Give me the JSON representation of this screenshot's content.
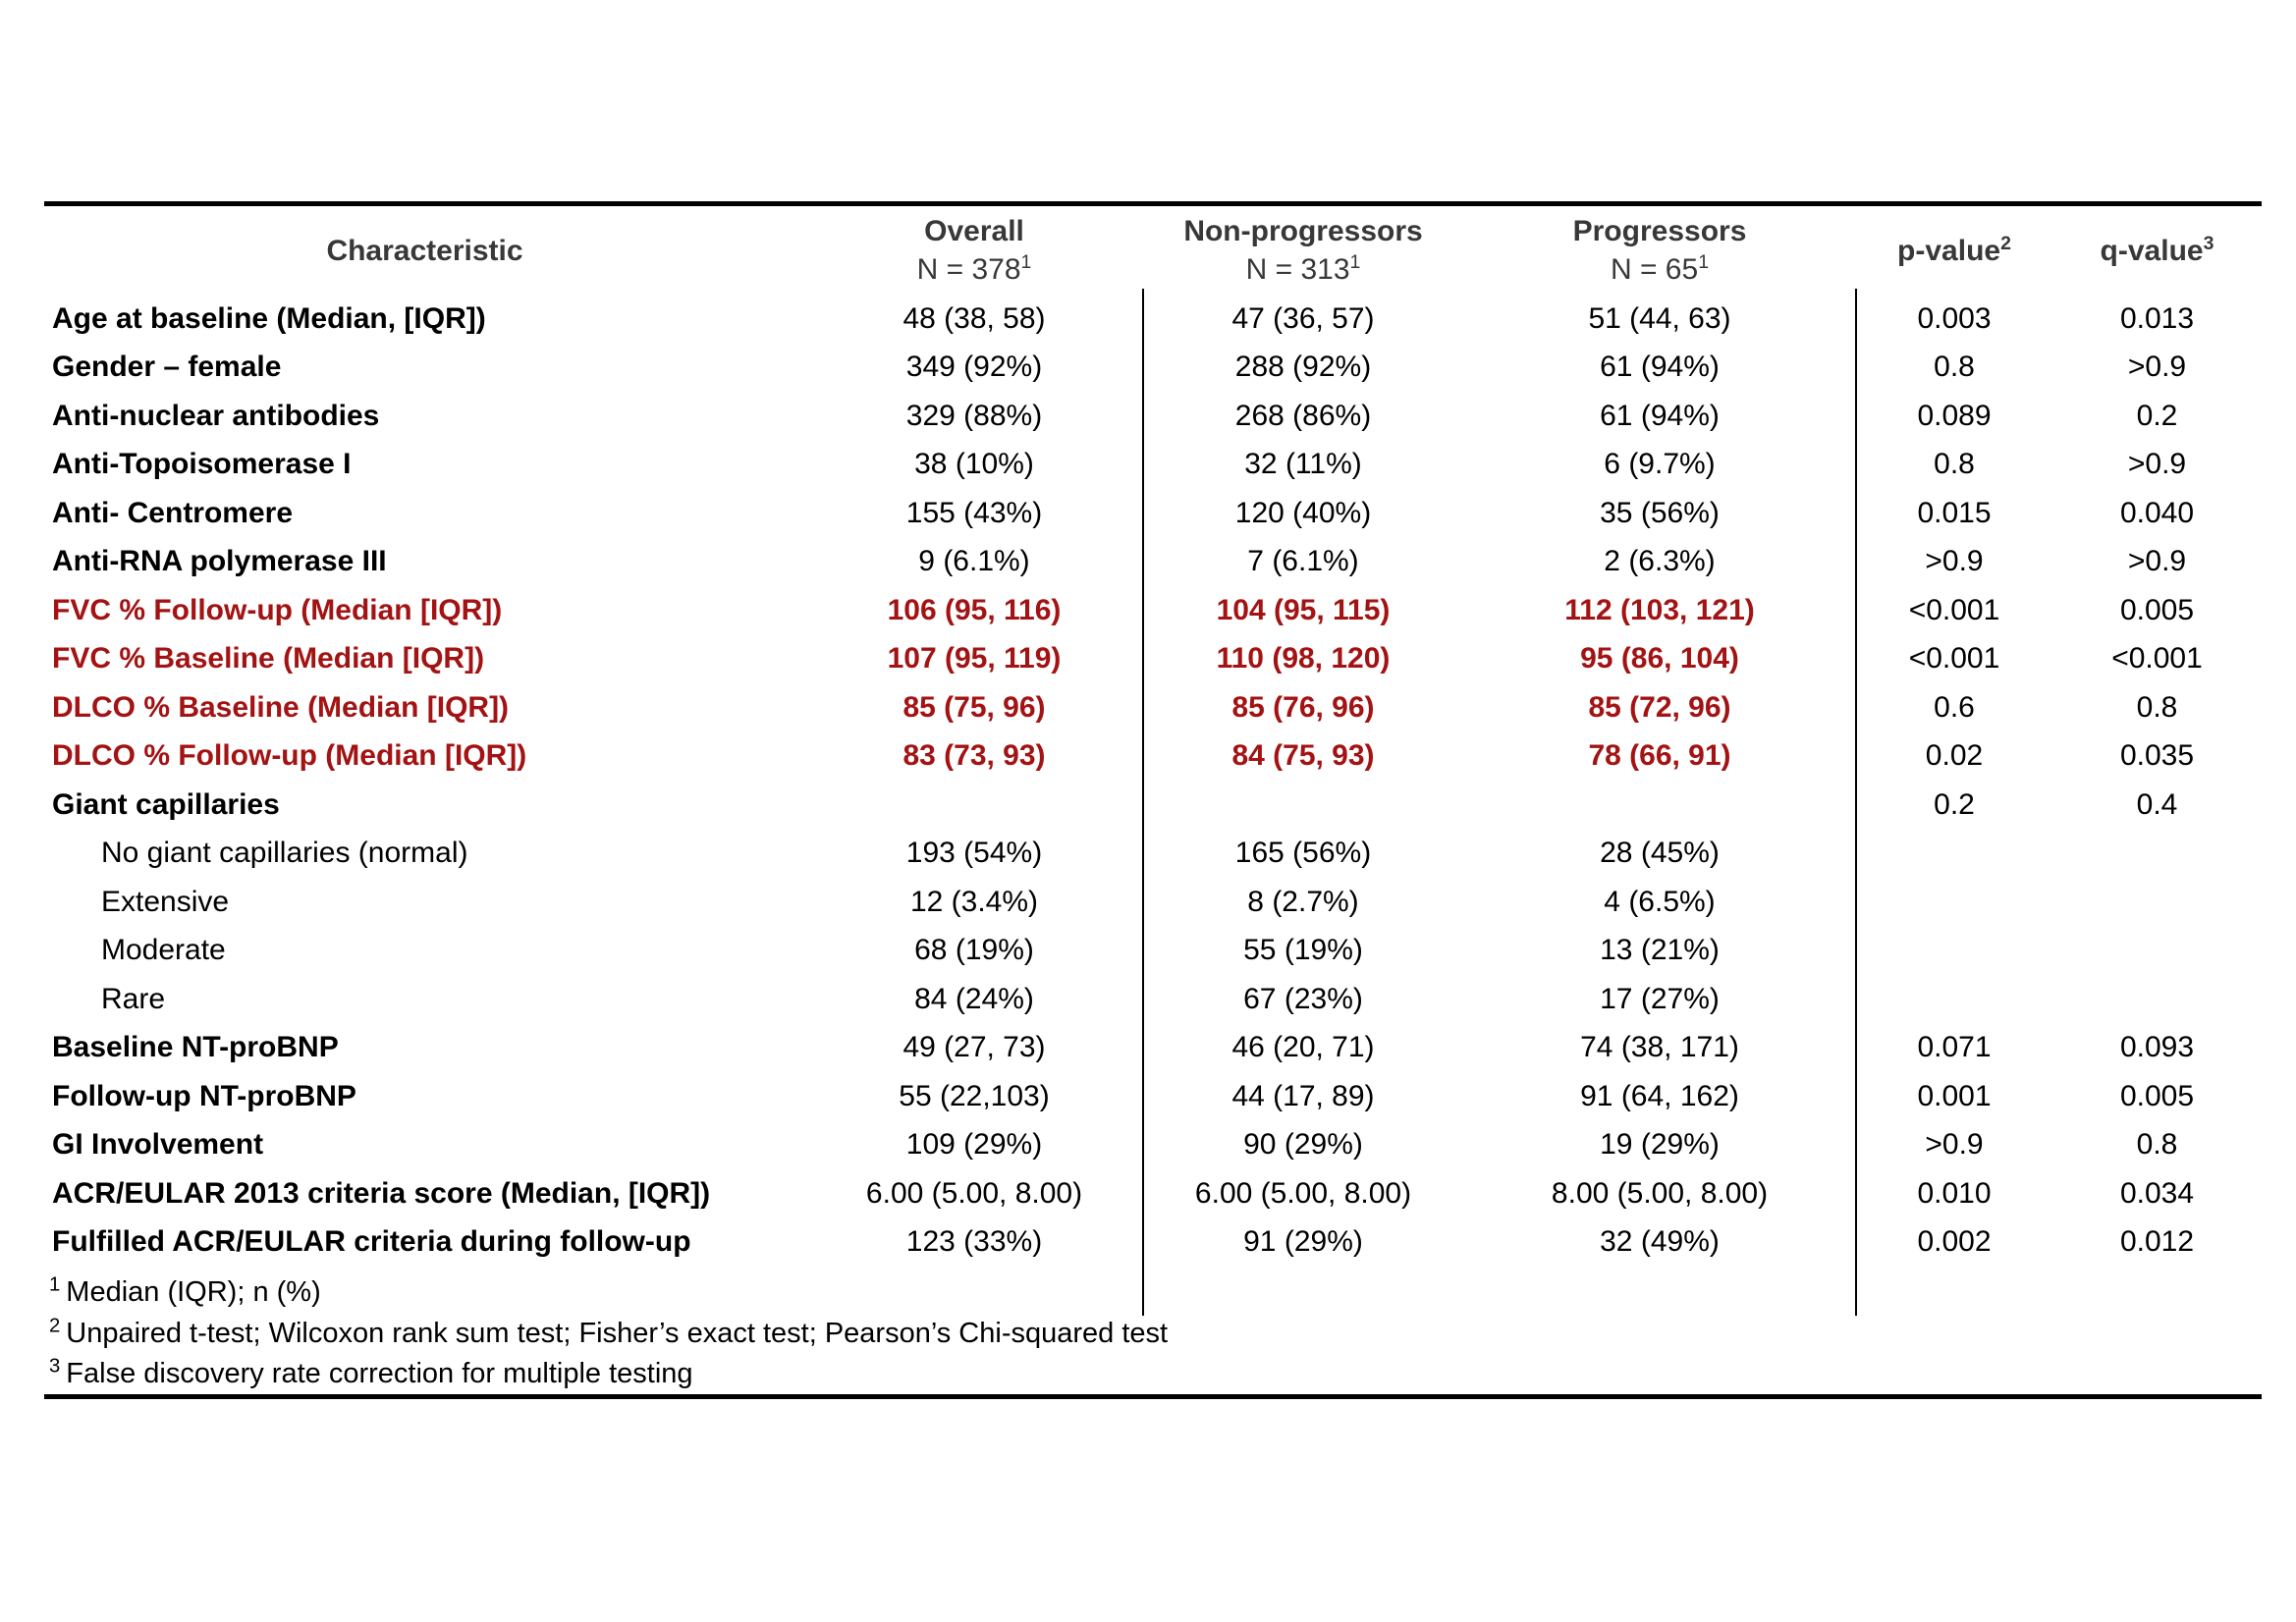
{
  "colors": {
    "accent_red": "#A31313",
    "header_text": "#383838",
    "rule_black": "#000000"
  },
  "table": {
    "header": {
      "characteristic_label": "Characteristic",
      "columns": [
        {
          "name": "Overall",
          "n": "N = 378",
          "sup": "1"
        },
        {
          "name": "Non-progressors",
          "n": "N = 313",
          "sup": "1"
        },
        {
          "name": "Progressors",
          "n": "N = 65",
          "sup": "1"
        }
      ],
      "p_label": {
        "text": "p-value",
        "sup": "2"
      },
      "q_label": {
        "text": "q-value",
        "sup": "3"
      }
    },
    "rows": [
      {
        "style": "default",
        "label": "Age at baseline (Median, [IQR])",
        "overall": "48 (38, 58)",
        "non_progressors": "47 (36, 57)",
        "progressors": "51 (44, 63)",
        "p": "0.003",
        "q": "0.013"
      },
      {
        "style": "default",
        "label": "Gender – female",
        "overall": "349 (92%)",
        "non_progressors": "288 (92%)",
        "progressors": "61 (94%)",
        "p": "0.8",
        "q": ">0.9"
      },
      {
        "style": "default",
        "label": "Anti-nuclear antibodies",
        "overall": "329 (88%)",
        "non_progressors": "268 (86%)",
        "progressors": "61 (94%)",
        "p": "0.089",
        "q": "0.2"
      },
      {
        "style": "default",
        "label": "Anti-Topoisomerase I",
        "overall": "38 (10%)",
        "non_progressors": "32 (11%)",
        "progressors": "6 (9.7%)",
        "p": "0.8",
        "q": ">0.9"
      },
      {
        "style": "default",
        "label": "Anti- Centromere",
        "overall": "155 (43%)",
        "non_progressors": "120 (40%)",
        "progressors": "35 (56%)",
        "p": "0.015",
        "q": "0.040"
      },
      {
        "style": "default",
        "label": "Anti-RNA polymerase III",
        "overall": "9 (6.1%)",
        "non_progressors": "7 (6.1%)",
        "progressors": "2 (6.3%)",
        "p": ">0.9",
        "q": ">0.9"
      },
      {
        "style": "red",
        "label": "FVC % Follow-up (Median [IQR])",
        "overall": "106 (95, 116)",
        "non_progressors": "104 (95, 115)",
        "progressors": "112 (103, 121)",
        "p": "<0.001",
        "q": "0.005"
      },
      {
        "style": "red",
        "label": "FVC % Baseline (Median [IQR])",
        "overall": "107 (95, 119)",
        "non_progressors": "110 (98, 120)",
        "progressors": "95 (86, 104)",
        "p": "<0.001",
        "q": "<0.001"
      },
      {
        "style": "red",
        "label": "DLCO % Baseline (Median [IQR])",
        "overall": "85 (75, 96)",
        "non_progressors": "85 (76, 96)",
        "progressors": "85 (72, 96)",
        "p": "0.6",
        "q": "0.8"
      },
      {
        "style": "red",
        "label": "DLCO % Follow-up (Median [IQR])",
        "overall": "83 (73, 93)",
        "non_progressors": "84 (75, 93)",
        "progressors": "78 (66, 91)",
        "p": "0.02",
        "q": "0.035"
      },
      {
        "style": "default",
        "label": "Giant capillaries",
        "overall": "",
        "non_progressors": "",
        "progressors": "",
        "p": "0.2",
        "q": "0.4"
      },
      {
        "style": "sub",
        "label": "No giant capillaries (normal)",
        "overall": "193 (54%)",
        "non_progressors": "165 (56%)",
        "progressors": "28 (45%)",
        "p": "",
        "q": ""
      },
      {
        "style": "sub",
        "label": "Extensive",
        "overall": "12 (3.4%)",
        "non_progressors": "8 (2.7%)",
        "progressors": "4 (6.5%)",
        "p": "",
        "q": ""
      },
      {
        "style": "sub",
        "label": "Moderate",
        "overall": "68 (19%)",
        "non_progressors": "55 (19%)",
        "progressors": "13 (21%)",
        "p": "",
        "q": ""
      },
      {
        "style": "sub",
        "label": "Rare",
        "overall": "84 (24%)",
        "non_progressors": "67 (23%)",
        "progressors": "17 (27%)",
        "p": "",
        "q": ""
      },
      {
        "style": "default",
        "label": "Baseline NT-proBNP",
        "overall": "49 (27, 73)",
        "non_progressors": "46 (20, 71)",
        "progressors": "74 (38, 171)",
        "p": "0.071",
        "q": "0.093"
      },
      {
        "style": "default",
        "label": "Follow-up NT-proBNP",
        "overall": "55 (22,103)",
        "non_progressors": "44 (17, 89)",
        "progressors": "91 (64, 162)",
        "p": "0.001",
        "q": "0.005"
      },
      {
        "style": "default",
        "label": "GI Involvement",
        "overall": "109 (29%)",
        "non_progressors": "90 (29%)",
        "progressors": "19 (29%)",
        "p": ">0.9",
        "q": "0.8"
      },
      {
        "style": "default",
        "label": "ACR/EULAR 2013 criteria score (Median, [IQR])",
        "overall": "6.00 (5.00, 8.00)",
        "non_progressors": "6.00 (5.00, 8.00)",
        "progressors": "8.00 (5.00, 8.00)",
        "p": "0.010",
        "q": "0.034"
      },
      {
        "style": "default",
        "label": "Fulfilled ACR/EULAR criteria during follow-up",
        "overall": "123 (33%)",
        "non_progressors": "91 (29%)",
        "progressors": "32 (49%)",
        "p": "0.002",
        "q": "0.012"
      }
    ],
    "footnotes": [
      {
        "marker": "1",
        "text": "Median (IQR); n (%)"
      },
      {
        "marker": "2",
        "text": "Unpaired t-test; Wilcoxon rank sum test; Fisher’s exact test; Pearson’s Chi-squared test"
      },
      {
        "marker": "3",
        "text": "False discovery rate correction for multiple testing"
      }
    ]
  }
}
